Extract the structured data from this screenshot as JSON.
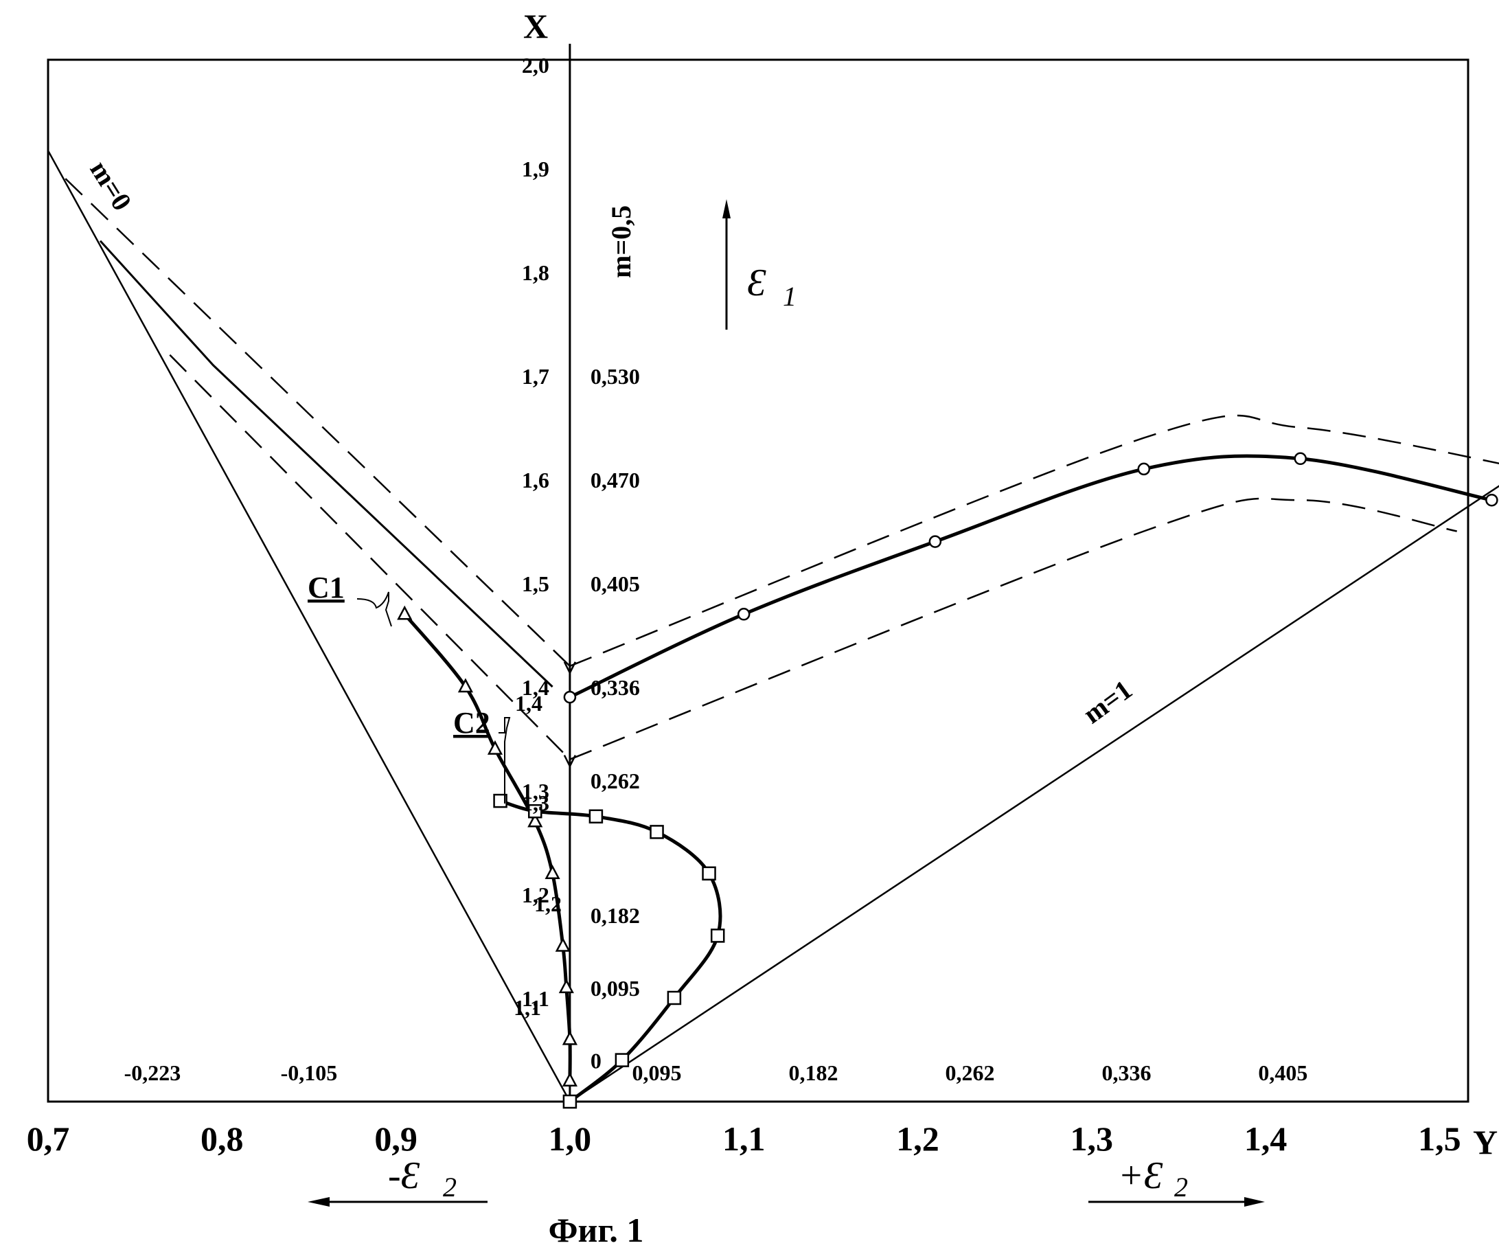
{
  "chart_data": {
    "type": "line",
    "title": "",
    "caption": "Фиг. 1",
    "xlabel": "Y",
    "ylabel": "X",
    "xlim": [
      0.7,
      1.55
    ],
    "ylim": [
      1.0,
      2.02
    ],
    "x_ticks": [
      "0,7",
      "0,8",
      "0,9",
      "1,0",
      "1,1",
      "1,2",
      "1,3",
      "1,4",
      "1,5"
    ],
    "y_ticks": [
      "2,0",
      "1,9",
      "1,8",
      "1,7",
      "1,6",
      "1,5",
      "1,4",
      "1,3",
      "1,2",
      "1,1"
    ],
    "y_secondary_labels": [
      {
        "y": 1.7,
        "text": "0,530"
      },
      {
        "y": 1.6,
        "text": "0,470"
      },
      {
        "y": 1.5,
        "text": "0,405"
      },
      {
        "y": 1.4,
        "text": "0,336"
      },
      {
        "y": 1.31,
        "text": "0,262"
      },
      {
        "y": 1.18,
        "text": "0,182"
      },
      {
        "y": 1.11,
        "text": "0,095"
      },
      {
        "y": 1.04,
        "text": "0"
      }
    ],
    "x_secondary_labels": [
      {
        "x": 0.76,
        "text": "-0,223"
      },
      {
        "x": 0.85,
        "text": "-0,105"
      },
      {
        "x": 1.05,
        "text": "0,095"
      },
      {
        "x": 1.14,
        "text": "0,182"
      },
      {
        "x": 1.23,
        "text": "0,262"
      },
      {
        "x": 1.32,
        "text": "0,336"
      },
      {
        "x": 1.41,
        "text": "0,405"
      }
    ],
    "boundary_lines": [
      {
        "label": "m=0",
        "points": [
          [
            0.7,
            1.917
          ],
          [
            1.0,
            1.0
          ]
        ]
      },
      {
        "label": "m=1",
        "points": [
          [
            1.0,
            1.0
          ],
          [
            1.54,
            1.6
          ]
        ]
      },
      {
        "label": "m=0,5",
        "points": [
          [
            1.0,
            1.0
          ],
          [
            1.0,
            2.02
          ]
        ]
      }
    ],
    "series": [
      {
        "marker": "circle",
        "style": "solid-thick",
        "values": [
          [
            1.0,
            1.39
          ],
          [
            1.1,
            1.47
          ],
          [
            1.21,
            1.54
          ],
          [
            1.33,
            1.61
          ],
          [
            1.42,
            1.62
          ],
          [
            1.53,
            1.58
          ]
        ]
      },
      {
        "marker": "none",
        "style": "solid",
        "values": [
          [
            0.73,
            1.83
          ],
          [
            0.795,
            1.71
          ],
          [
            0.99,
            1.4
          ]
        ]
      },
      {
        "marker": "triangle",
        "style": "solid-thick",
        "values": [
          [
            1.0,
            1.02
          ],
          [
            1.0,
            1.06
          ],
          [
            0.998,
            1.11
          ],
          [
            0.996,
            1.15
          ],
          [
            0.99,
            1.22
          ],
          [
            0.98,
            1.27
          ],
          [
            0.957,
            1.34
          ],
          [
            0.94,
            1.4
          ],
          [
            0.905,
            1.47
          ]
        ]
      },
      {
        "marker": "square",
        "style": "solid-thick",
        "values": [
          [
            1.0,
            1.0
          ],
          [
            1.03,
            1.04
          ],
          [
            1.06,
            1.1
          ],
          [
            1.085,
            1.16
          ],
          [
            1.08,
            1.22
          ],
          [
            1.05,
            1.26
          ],
          [
            1.015,
            1.275
          ],
          [
            0.98,
            1.28
          ],
          [
            0.96,
            1.29
          ]
        ]
      },
      {
        "marker": "none",
        "style": "dashed",
        "values": [
          [
            0.71,
            1.89
          ],
          [
            1.0,
            1.42
          ]
        ]
      },
      {
        "marker": "none",
        "style": "dashed",
        "values": [
          [
            0.77,
            1.72
          ],
          [
            1.0,
            1.33
          ]
        ]
      },
      {
        "marker": "none",
        "style": "dashed",
        "values": [
          [
            1.0,
            1.42
          ],
          [
            1.33,
            1.64
          ],
          [
            1.42,
            1.65
          ],
          [
            1.55,
            1.61
          ]
        ]
      },
      {
        "marker": "none",
        "style": "dashed",
        "values": [
          [
            1.0,
            1.33
          ],
          [
            1.33,
            1.55
          ],
          [
            1.42,
            1.58
          ],
          [
            1.51,
            1.55
          ]
        ]
      }
    ],
    "annotations": [
      {
        "text": "m=0"
      },
      {
        "text": "m=0,5"
      },
      {
        "text": "m=1"
      },
      {
        "text": "C1"
      },
      {
        "text": "C2"
      },
      {
        "text": "1,4"
      },
      {
        "text": "1,3"
      },
      {
        "text": "1,2"
      },
      {
        "text": "1,1"
      }
    ],
    "arrows": [
      {
        "label": "Ɛ",
        "sub": "1",
        "direction": "up"
      },
      {
        "label": "-Ɛ",
        "sub": "2",
        "direction": "left"
      },
      {
        "label": "+Ɛ",
        "sub": "2",
        "direction": "right"
      }
    ],
    "grid": false,
    "legend": "none"
  }
}
